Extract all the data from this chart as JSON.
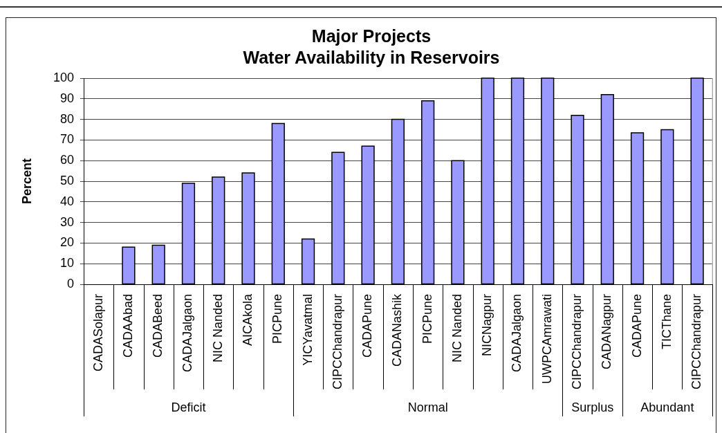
{
  "chart_data": {
    "type": "bar",
    "title": "Major Projects",
    "subtitle": "Water Availability in Reservoirs",
    "ylabel": "Percent",
    "categories": [
      "CADASolapur",
      "CADAAbad",
      "CADABeed",
      "CADAJalgaon",
      "NIC Nanded",
      "AICAkola",
      "PICPune",
      "YICYavatmal",
      "CIPCChandrapur",
      "CADAPune",
      "CADANashik",
      "PICPune",
      "NIC Nanded",
      "NICNagpur",
      "CADAJalgaon",
      "UWPCAmrawati",
      "CIPCChandrapur",
      "CADANagpur",
      "CADAPune",
      "TICThane",
      "CIPCChandrapur"
    ],
    "values": [
      0,
      18,
      19,
      49,
      52,
      54,
      78,
      22,
      64,
      67,
      80,
      89,
      60,
      100,
      100,
      100,
      82,
      92,
      73.5,
      75,
      100
    ],
    "color": "#9999ff",
    "ylim": [
      0,
      100
    ],
    "yticks": [
      0,
      10,
      20,
      30,
      40,
      50,
      60,
      70,
      80,
      90,
      100
    ],
    "grid": "y",
    "annotations": [
      "Deficit",
      "Normal",
      "Surplus",
      "Abundant"
    ]
  }
}
